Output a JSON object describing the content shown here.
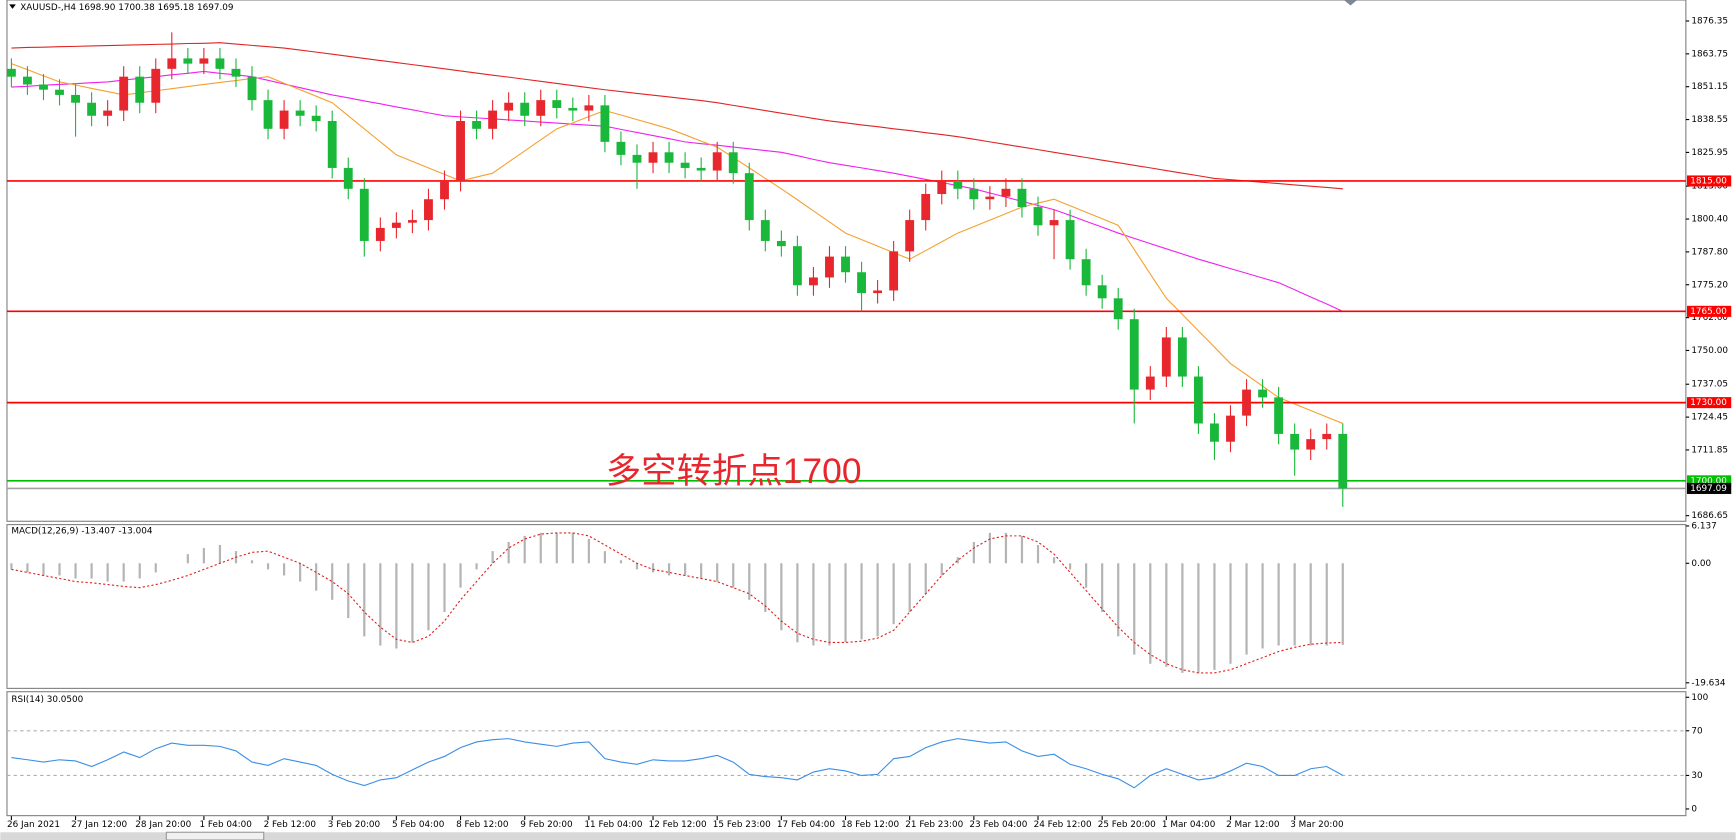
{
  "chart_data": [
    {
      "type": "candlestick",
      "title": "XAUUSD-,H4  1698.90 1700.38 1695.18 1697.09",
      "annotation": "多空转折点1700",
      "up_color": "#e8262d",
      "down_color": "#19b83a",
      "categories": [
        "26 Jan 2021",
        null,
        null,
        null,
        "27 Jan 12:00",
        null,
        null,
        null,
        "28 Jan 20:00",
        null,
        null,
        null,
        "1 Feb 04:00",
        null,
        null,
        null,
        "2 Feb 12:00",
        null,
        null,
        null,
        "3 Feb 20:00",
        null,
        null,
        null,
        "5 Feb 04:00",
        null,
        null,
        null,
        "8 Feb 12:00",
        null,
        null,
        null,
        "9 Feb 20:00",
        null,
        null,
        null,
        "11 Feb 04:00",
        null,
        null,
        null,
        "12 Feb 12:00",
        null,
        null,
        null,
        "15 Feb 23:00",
        null,
        null,
        null,
        "17 Feb 04:00",
        null,
        null,
        null,
        "18 Feb 12:00",
        null,
        null,
        null,
        "21 Feb 23:00",
        null,
        null,
        null,
        "23 Feb 04:00",
        null,
        null,
        null,
        "24 Feb 12:00",
        null,
        null,
        null,
        "25 Feb 20:00",
        null,
        null,
        null,
        "1 Mar 04:00",
        null,
        null,
        null,
        "2 Mar 12:00",
        null,
        null,
        null,
        "3 Mar 20:00",
        null,
        null,
        null
      ],
      "open": [
        1858,
        1855,
        1852,
        1850,
        1848,
        1845,
        1840,
        1842,
        1855,
        1845,
        1858,
        1862,
        1860,
        1862,
        1858,
        1855,
        1846,
        1835,
        1842,
        1840,
        1838,
        1820,
        1812,
        1792,
        1797,
        1799,
        1800,
        1808,
        1815,
        1838,
        1835,
        1842,
        1845,
        1840,
        1846,
        1843,
        1842,
        1844,
        1830,
        1825,
        1822,
        1826,
        1822,
        1820,
        1819,
        1826,
        1818,
        1800,
        1792,
        1790,
        1775,
        1778,
        1786,
        1780,
        1772,
        1773,
        1788,
        1800,
        1810,
        1815,
        1812,
        1808,
        1809,
        1812,
        1805,
        1798,
        1800,
        1785,
        1775,
        1770,
        1762,
        1735,
        1740,
        1755,
        1740,
        1722,
        1715,
        1725,
        1735,
        1732,
        1718,
        1712,
        1716,
        1718
      ],
      "high": [
        1862,
        1859,
        1856,
        1854,
        1852,
        1849,
        1846,
        1859,
        1859,
        1862,
        1872,
        1866,
        1866,
        1866,
        1862,
        1859,
        1850,
        1846,
        1846,
        1844,
        1842,
        1824,
        1816,
        1801,
        1803,
        1804,
        1812,
        1819,
        1842,
        1842,
        1846,
        1849,
        1849,
        1850,
        1850,
        1847,
        1848,
        1848,
        1834,
        1829,
        1830,
        1830,
        1826,
        1824,
        1830,
        1830,
        1822,
        1804,
        1796,
        1794,
        1782,
        1790,
        1790,
        1784,
        1777,
        1792,
        1804,
        1814,
        1819,
        1819,
        1816,
        1813,
        1816,
        1816,
        1809,
        1804,
        1804,
        1789,
        1779,
        1774,
        1766,
        1744,
        1759,
        1759,
        1744,
        1726,
        1729,
        1739,
        1739,
        1736,
        1722,
        1720,
        1722,
        1722
      ],
      "low": [
        1851,
        1848,
        1846,
        1844,
        1832,
        1836,
        1836,
        1838,
        1841,
        1841,
        1854,
        1856,
        1856,
        1854,
        1851,
        1842,
        1831,
        1831,
        1836,
        1834,
        1816,
        1808,
        1786,
        1788,
        1793,
        1795,
        1796,
        1804,
        1811,
        1831,
        1831,
        1838,
        1836,
        1836,
        1839,
        1838,
        1838,
        1826,
        1821,
        1812,
        1818,
        1818,
        1816,
        1815,
        1815,
        1814,
        1796,
        1788,
        1786,
        1771,
        1771,
        1774,
        1776,
        1765,
        1768,
        1769,
        1784,
        1796,
        1806,
        1808,
        1804,
        1804,
        1805,
        1801,
        1794,
        1785,
        1781,
        1771,
        1766,
        1758,
        1722,
        1731,
        1736,
        1736,
        1718,
        1708,
        1711,
        1721,
        1728,
        1714,
        1702,
        1708,
        1712,
        1690
      ],
      "close": [
        1855,
        1852,
        1850,
        1848,
        1845,
        1840,
        1842,
        1855,
        1845,
        1858,
        1862,
        1860,
        1862,
        1858,
        1855,
        1846,
        1835,
        1842,
        1840,
        1838,
        1820,
        1812,
        1792,
        1797,
        1799,
        1800,
        1808,
        1815,
        1838,
        1835,
        1842,
        1845,
        1840,
        1846,
        1843,
        1842,
        1844,
        1830,
        1825,
        1822,
        1826,
        1822,
        1820,
        1819,
        1826,
        1818,
        1800,
        1792,
        1790,
        1775,
        1778,
        1786,
        1780,
        1772,
        1773,
        1788,
        1800,
        1810,
        1815,
        1812,
        1808,
        1809,
        1812,
        1805,
        1798,
        1800,
        1785,
        1775,
        1770,
        1762,
        1735,
        1740,
        1755,
        1740,
        1722,
        1715,
        1725,
        1735,
        1732,
        1718,
        1712,
        1716,
        1718,
        1697.09
      ],
      "series": [
        {
          "color": "#e02424",
          "values": [
            1866,
            1866.2,
            1866.3,
            1866.5,
            1866.6,
            1866.8,
            1866.9,
            1867.1,
            1867.2,
            1867.4,
            1867.5,
            1867.7,
            1867.8,
            1868,
            1867.5,
            1867,
            1866.5,
            1866,
            1865.2,
            1864.4,
            1863.6,
            1862.8,
            1862,
            1861.2,
            1860.4,
            1859.6,
            1858.8,
            1858,
            1857.2,
            1856.4,
            1855.6,
            1854.8,
            1854,
            1853.2,
            1852.4,
            1851.6,
            1850.8,
            1850,
            1849.3,
            1848.6,
            1847.9,
            1847.2,
            1846.5,
            1845.8,
            1845,
            1844,
            1843,
            1842,
            1841,
            1840,
            1839,
            1838,
            1837.3,
            1836.5,
            1835.8,
            1835,
            1834.3,
            1833.5,
            1832.8,
            1832,
            1831,
            1830,
            1829,
            1828,
            1827,
            1826,
            1825,
            1824,
            1823,
            1822,
            1821,
            1820,
            1819,
            1818,
            1817,
            1816,
            1815.5,
            1815,
            1814.5,
            1814,
            1813.5,
            1813,
            1812.5,
            1812
          ]
        },
        {
          "color": "#f020f0",
          "values": [
            1851,
            1851.3,
            1851.7,
            1852,
            1852.3,
            1852.7,
            1853,
            1853.7,
            1854.3,
            1855,
            1855.7,
            1856.3,
            1857,
            1856.3,
            1855.7,
            1855,
            1853.6,
            1852.2,
            1850.8,
            1849.4,
            1848,
            1846.9,
            1845.7,
            1844.6,
            1843.4,
            1842.3,
            1841.1,
            1840,
            1839.6,
            1839.2,
            1838.8,
            1838.4,
            1838,
            1837.6,
            1837.2,
            1836.8,
            1836.4,
            1836,
            1834.8,
            1833.6,
            1832.4,
            1831.2,
            1830,
            1829.3,
            1828.7,
            1828,
            1827.3,
            1826.7,
            1826,
            1824.7,
            1823.3,
            1822,
            1821,
            1820,
            1819,
            1818,
            1816.8,
            1815.6,
            1814.4,
            1813.2,
            1812,
            1810.4,
            1808.8,
            1807.2,
            1805.6,
            1804,
            1801.8,
            1799.5,
            1797.3,
            1795,
            1793,
            1791,
            1789,
            1787,
            1785,
            1783.2,
            1781.4,
            1779.6,
            1777.8,
            1776,
            1773.3,
            1770.5,
            1767.8,
            1765
          ]
        },
        {
          "color": "#f5a030",
          "values": [
            1860,
            1857.7,
            1855.3,
            1853,
            1851.8,
            1850.5,
            1849.3,
            1848,
            1848.8,
            1849.6,
            1850.4,
            1851.2,
            1852,
            1852.8,
            1853.5,
            1854.3,
            1855,
            1852.5,
            1850,
            1847.5,
            1845,
            1840,
            1835,
            1830,
            1825,
            1822.5,
            1820,
            1817.5,
            1815,
            1816.5,
            1818,
            1822.3,
            1826.5,
            1830.8,
            1835,
            1837.3,
            1839.7,
            1842,
            1840.3,
            1838.5,
            1836.8,
            1835,
            1832.7,
            1830.3,
            1828,
            1824,
            1820,
            1816,
            1812,
            1807.8,
            1803.5,
            1799.3,
            1795,
            1792.5,
            1790,
            1787.5,
            1785,
            1788.3,
            1791.7,
            1795,
            1797.5,
            1800,
            1802.5,
            1805,
            1806.5,
            1808,
            1805.5,
            1803,
            1800.5,
            1798,
            1788.7,
            1779.3,
            1770,
            1763.8,
            1757.5,
            1751.3,
            1745,
            1740.7,
            1736.3,
            1732,
            1729.5,
            1727,
            1724.5,
            1722
          ]
        }
      ],
      "levels": [
        {
          "value": 1815,
          "label": "1815.00",
          "color": "#ff0000",
          "label_bg": "#ff0000"
        },
        {
          "value": 1765,
          "label": "1765.00",
          "color": "#ff0000",
          "label_bg": "#ff0000"
        },
        {
          "value": 1730,
          "label": "1730.00",
          "color": "#ff0000",
          "label_bg": "#ff0000"
        },
        {
          "value": 1700,
          "label": "1700.00",
          "color": "#00c000",
          "label_bg": "#00c000"
        },
        {
          "value": 1697.09,
          "label": "1697.09",
          "color": "#a0a0a0",
          "label_bg": "#000000"
        }
      ],
      "ylim": [
        1684.5,
        1884.4
      ],
      "yticks": [
        1876.35,
        1863.75,
        1851.15,
        1838.55,
        1825.95,
        {
          "value": 1813,
          "label": "1813.00"
        },
        {
          "value": 1800.4,
          "label": "1800.40"
        },
        {
          "value": 1787.8,
          "label": "1787.80"
        },
        {
          "value": 1775.2,
          "label": "1775.20"
        },
        {
          "value": 1762.6,
          "label": "1762.60"
        },
        {
          "value": 1750,
          "label": "1750.00"
        },
        1737.05,
        1724.45,
        1711.85,
        1686.65
      ]
    },
    {
      "type": "macd",
      "title": "MACD(12,26,9) -13.407 -13.004",
      "histogram": {
        "color": "#b4b4b4",
        "values": [
          -1,
          -1.5,
          -2,
          -2,
          -2.5,
          -2.5,
          -3,
          -3,
          -2.5,
          -1.5,
          0,
          1.5,
          2.5,
          3,
          2,
          0.5,
          -1,
          -2,
          -3,
          -4.5,
          -6,
          -9,
          -12,
          -13.5,
          -14,
          -13,
          -11,
          -8,
          -4,
          -1,
          2,
          3.5,
          4.5,
          5,
          5,
          5,
          4,
          2,
          0.5,
          -1,
          -1.5,
          -2,
          -2,
          -2.5,
          -3,
          -4,
          -6,
          -8,
          -11,
          -13,
          -13.5,
          -13.5,
          -13,
          -12.5,
          -12,
          -10,
          -8,
          -5,
          -2,
          1,
          3.5,
          5,
          5,
          4.5,
          3,
          1,
          -1,
          -4,
          -8,
          -12,
          -15,
          -16.5,
          -17,
          -18,
          -18,
          -17.5,
          -16.5,
          -15,
          -14,
          -13.5,
          -13.5,
          -13.5,
          -13.5,
          -13.407
        ]
      },
      "signal": {
        "color": "#e02020",
        "values": [
          -1,
          -1.5,
          -2,
          -2.5,
          -3,
          -3.2,
          -3.5,
          -3.8,
          -4,
          -3.5,
          -2.8,
          -2,
          -1,
          0,
          1,
          1.8,
          2,
          1,
          0,
          -1.5,
          -3,
          -5,
          -8,
          -10.5,
          -12.5,
          -13,
          -12,
          -9.5,
          -6,
          -3,
          0,
          2.5,
          4,
          4.8,
          5,
          5,
          4.5,
          3,
          1.5,
          0,
          -1,
          -1.5,
          -2,
          -2.5,
          -3,
          -4,
          -5,
          -7,
          -9.5,
          -11.5,
          -12.5,
          -13,
          -13,
          -12.8,
          -12.3,
          -11,
          -8,
          -5,
          -2,
          0.5,
          2.5,
          4,
          4.5,
          4.5,
          3.5,
          1.5,
          -1.5,
          -4.5,
          -7.5,
          -10.5,
          -13,
          -15,
          -16.5,
          -17.5,
          -18,
          -18,
          -17.5,
          -16.5,
          -15.5,
          -14.5,
          -13.8,
          -13.3,
          -13.1,
          -13.004
        ]
      },
      "ylim": [
        -20.55,
        6.36
      ],
      "yticks": [
        6.137,
        {
          "value": 0,
          "label": "0.00"
        },
        -19.634
      ]
    },
    {
      "type": "rsi",
      "title": "RSI(14) 30.0500",
      "color": "#3a8ee6",
      "values": [
        46,
        44,
        42,
        44,
        43,
        38,
        44,
        51,
        46,
        54,
        59,
        57,
        57,
        56,
        52,
        42,
        39,
        45,
        42,
        39,
        31,
        25,
        21,
        26,
        28,
        35,
        42,
        47,
        55,
        60,
        62,
        63,
        60,
        58,
        56,
        59,
        60,
        45,
        42,
        40,
        44,
        43,
        43,
        45,
        48,
        42,
        31,
        29,
        28,
        26,
        33,
        36,
        34,
        30,
        31,
        45,
        47,
        55,
        60,
        63,
        61,
        59,
        60,
        52,
        47,
        49,
        40,
        36,
        31,
        27,
        19,
        30,
        36,
        31,
        26,
        28,
        34,
        41,
        38,
        30,
        30,
        36,
        38,
        30.05
      ],
      "levels": [
        70,
        30
      ],
      "ylim": [
        -6,
        105
      ],
      "yticks": [
        100,
        70,
        30,
        0
      ]
    }
  ]
}
